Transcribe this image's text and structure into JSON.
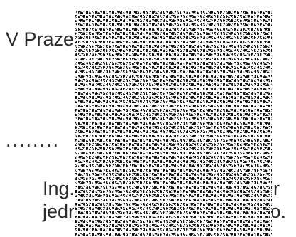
{
  "document": {
    "place_date": "V Praze",
    "signature_dots": "........",
    "signer_line_1": "Ing.",
    "signer_line_1_tail": "r",
    "signer_line_2": "jedr",
    "signer_line_2_tail": ".o."
  }
}
